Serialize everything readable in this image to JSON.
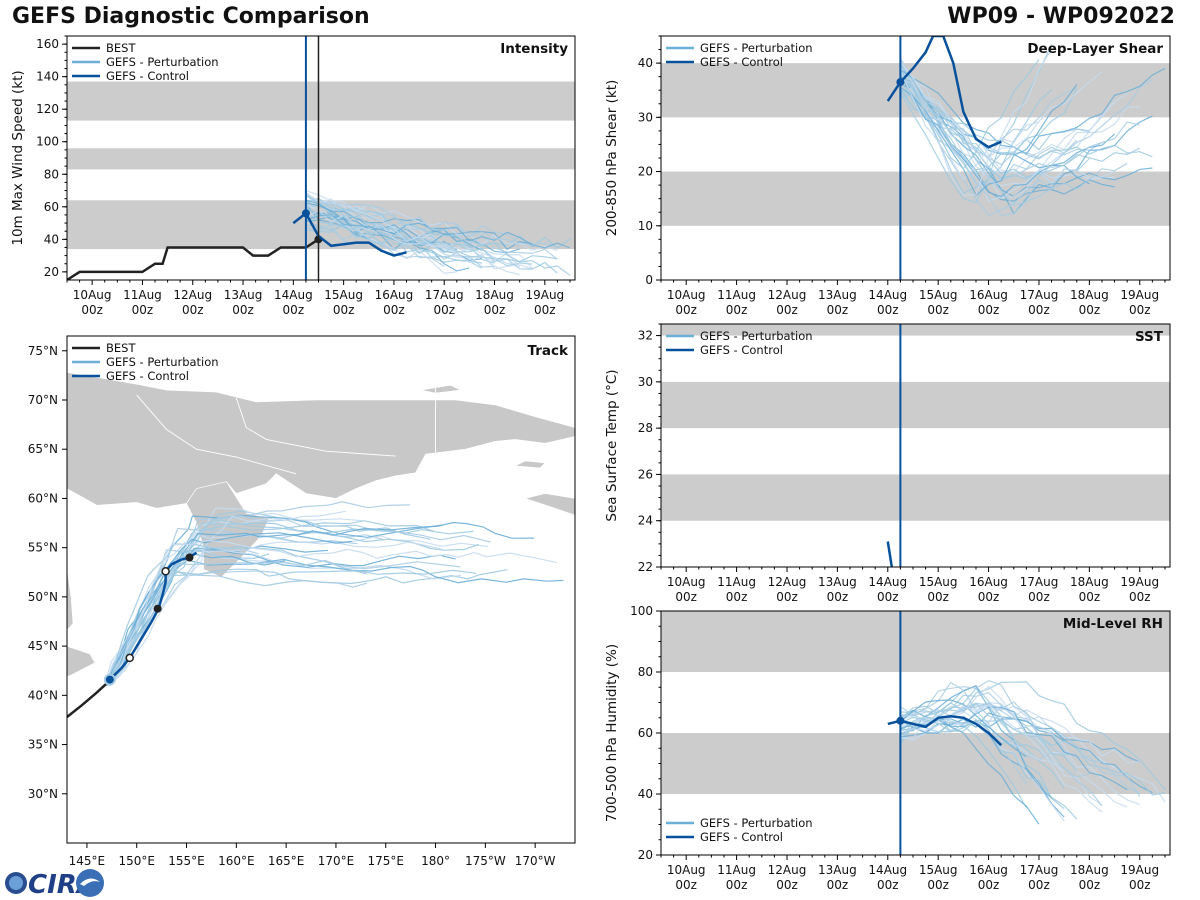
{
  "header": {
    "title": "GEFS Diagnostic Comparison",
    "storm": "WP09 - WP092022"
  },
  "logo": {
    "text": "CIRA"
  },
  "colors": {
    "best": "#222222",
    "perturbation": "#6baed6",
    "control": "#08519c",
    "band": "#cccccc",
    "land": "#c8c8c8"
  },
  "legend": {
    "best": "BEST",
    "perturbation": "GEFS - Perturbation",
    "control": "GEFS - Control"
  },
  "time_ticks": [
    {
      "label": "10Aug",
      "sub": "00z"
    },
    {
      "label": "11Aug",
      "sub": "00z"
    },
    {
      "label": "12Aug",
      "sub": "00z"
    },
    {
      "label": "13Aug",
      "sub": "00z"
    },
    {
      "label": "14Aug",
      "sub": "00z"
    },
    {
      "label": "15Aug",
      "sub": "00z"
    },
    {
      "label": "16Aug",
      "sub": "00z"
    },
    {
      "label": "17Aug",
      "sub": "00z"
    },
    {
      "label": "18Aug",
      "sub": "00z"
    },
    {
      "label": "19Aug",
      "sub": "00z"
    }
  ],
  "chart_data": [
    {
      "id": "intensity",
      "type": "line",
      "title": "Intensity",
      "ylabel": "10m Max Wind Speed (kt)",
      "xlim": [
        -0.5,
        9.6
      ],
      "ylim": [
        15,
        165
      ],
      "yticks": [
        20,
        40,
        60,
        80,
        100,
        120,
        140,
        160
      ],
      "bands": [
        [
          34,
          64
        ],
        [
          83,
          96
        ],
        [
          113,
          137
        ]
      ],
      "init_line": 4.25,
      "best_line": 4.5,
      "best": {
        "x": [
          -0.5,
          -0.25,
          0,
          0.5,
          1,
          1.25,
          1.4,
          1.5,
          2,
          2.5,
          3,
          3.2,
          3.5,
          3.75,
          4,
          4.25,
          4.5
        ],
        "y": [
          15,
          20,
          20,
          20,
          20,
          25,
          25,
          35,
          35,
          35,
          35,
          30,
          30,
          35,
          35,
          35,
          40
        ]
      },
      "control": {
        "x": [
          4,
          4.25,
          4.5,
          4.75,
          5,
          5.25,
          5.5,
          5.75,
          6,
          6.25
        ],
        "y": [
          50,
          56,
          42,
          36,
          37,
          38,
          38,
          33,
          30,
          32
        ]
      },
      "perturbation_envelope": {
        "x0": 4.25,
        "x1": 9.6,
        "y_start": [
          48,
          68
        ],
        "y_end": [
          18,
          40
        ]
      }
    },
    {
      "id": "shear",
      "type": "line",
      "title": "Deep-Layer Shear",
      "ylabel": "200-850 hPa Shear (kt)",
      "xlim": [
        -0.5,
        9.6
      ],
      "ylim": [
        0,
        45
      ],
      "yticks": [
        0,
        10,
        20,
        30,
        40
      ],
      "bands": [
        [
          10,
          20
        ],
        [
          30,
          40
        ]
      ],
      "init_line": 4.25,
      "control": {
        "x": [
          4,
          4.25,
          4.5,
          4.75,
          4.9,
          5.1,
          5.3,
          5.5,
          5.75,
          6,
          6.25
        ],
        "y": [
          33,
          36.5,
          39,
          42,
          45,
          45,
          40,
          31,
          26,
          24.5,
          25.5
        ]
      },
      "perturbation_envelope": {
        "x0": 4.25,
        "x1": 9.6,
        "y_start": [
          34,
          40
        ],
        "y_mid": [
          10,
          25
        ],
        "y_end": [
          15,
          44
        ]
      }
    },
    {
      "id": "sst",
      "type": "line",
      "title": "SST",
      "ylabel": "Sea Surface Temp (°C)",
      "xlim": [
        -0.5,
        9.6
      ],
      "ylim": [
        22,
        32.5
      ],
      "yticks": [
        22,
        24,
        26,
        28,
        30,
        32
      ],
      "bands": [
        [
          24,
          26
        ],
        [
          28,
          30
        ],
        [
          32,
          34
        ]
      ],
      "init_line": 4.25,
      "control": {
        "x": [
          4,
          4.08
        ],
        "y": [
          23.1,
          22
        ]
      }
    },
    {
      "id": "rh",
      "type": "line",
      "title": "Mid-Level RH",
      "ylabel": "700-500 hPa Humidity (%)",
      "xlim": [
        -0.5,
        9.6
      ],
      "ylim": [
        20,
        100
      ],
      "yticks": [
        20,
        40,
        60,
        80,
        100
      ],
      "bands": [
        [
          40,
          60
        ],
        [
          80,
          100
        ]
      ],
      "init_line": 4.25,
      "control": {
        "x": [
          4,
          4.25,
          4.5,
          4.75,
          5,
          5.25,
          5.5,
          5.75,
          6,
          6.25
        ],
        "y": [
          63,
          64,
          63,
          62,
          65,
          65.5,
          65,
          63,
          60,
          56
        ]
      },
      "perturbation_envelope": {
        "x0": 4.25,
        "x1": 9.6,
        "y_start": [
          58,
          67
        ],
        "y_mid": [
          60,
          79
        ],
        "y_end": [
          26,
          55
        ]
      }
    },
    {
      "id": "track",
      "type": "scatter",
      "title": "Track",
      "xlim_lon": [
        143,
        194
      ],
      "ylim_lat": [
        25,
        76.5
      ],
      "lon_ticks": [
        {
          "v": 145,
          "l": "145°E"
        },
        {
          "v": 150,
          "l": "150°E"
        },
        {
          "v": 155,
          "l": "155°E"
        },
        {
          "v": 160,
          "l": "160°E"
        },
        {
          "v": 165,
          "l": "165°E"
        },
        {
          "v": 170,
          "l": "170°E"
        },
        {
          "v": 175,
          "l": "175°E"
        },
        {
          "v": 180,
          "l": "180°"
        },
        {
          "v": 185,
          "l": "175°W"
        },
        {
          "v": 190,
          "l": "170°W"
        }
      ],
      "lat_ticks": [
        {
          "v": 30,
          "l": "30°N"
        },
        {
          "v": 35,
          "l": "35°N"
        },
        {
          "v": 40,
          "l": "40°N"
        },
        {
          "v": 45,
          "l": "45°N"
        },
        {
          "v": 50,
          "l": "50°N"
        },
        {
          "v": 55,
          "l": "55°N"
        },
        {
          "v": 60,
          "l": "60°N"
        },
        {
          "v": 65,
          "l": "65°N"
        },
        {
          "v": 70,
          "l": "70°N"
        },
        {
          "v": 75,
          "l": "75°N"
        }
      ],
      "best": {
        "lon": [
          143,
          144.5,
          146,
          147.3
        ],
        "lat": [
          37.8,
          39,
          40.3,
          41.5
        ]
      },
      "control": {
        "lon": [
          147.3,
          148.5,
          149.3,
          150.5,
          151.5,
          152.2,
          152.6,
          152.9,
          152.9,
          153.5,
          154.5,
          155.3,
          156
        ],
        "lat": [
          41.6,
          42.8,
          43.8,
          45.8,
          47.5,
          48.8,
          50.2,
          51.5,
          52.6,
          53.3,
          53.8,
          54,
          54.5
        ]
      },
      "points": [
        {
          "lon": 147.3,
          "lat": 41.6,
          "kind": "init"
        },
        {
          "lon": 149.3,
          "lat": 43.8,
          "kind": "open"
        },
        {
          "lon": 152.1,
          "lat": 48.8,
          "kind": "filled"
        },
        {
          "lon": 152.9,
          "lat": 52.6,
          "kind": "open"
        },
        {
          "lon": 155.3,
          "lat": 54.0,
          "kind": "filled"
        }
      ]
    }
  ]
}
